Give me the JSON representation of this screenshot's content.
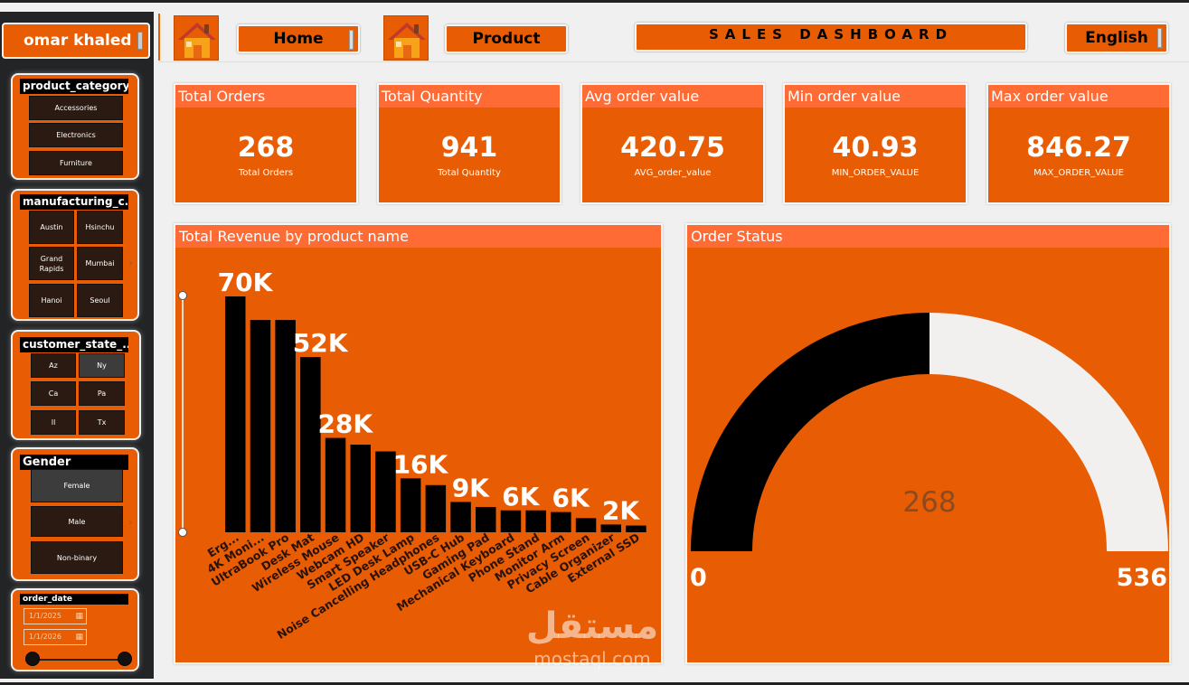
{
  "user": {
    "name": "omar khaled"
  },
  "nav": {
    "home_label": "Home",
    "product_label": "Product",
    "title": "SALES DASHBOARD",
    "language": "English"
  },
  "filters": {
    "product_category": {
      "title": "product_category",
      "options": [
        "Accessories",
        "Electronics",
        "Furniture"
      ]
    },
    "manufacturing_city": {
      "title": "manufacturing_c...",
      "options": [
        "Austin",
        "Hsinchu",
        "Grand Rapids",
        "Mumbai",
        "Hanoi",
        "Seoul"
      ]
    },
    "customer_state": {
      "title": "customer_state_...",
      "options": [
        "Az",
        "Ny",
        "Ca",
        "Pa",
        "Il",
        "Tx"
      ]
    },
    "gender": {
      "title": "Gender",
      "options": [
        "Female",
        "Male",
        "Non-binary"
      ]
    },
    "order_date": {
      "title": "order_date",
      "start": "1/1/2025",
      "end": "1/1/2026"
    }
  },
  "kpis": [
    {
      "title": "Total Orders",
      "value": "268",
      "label": "Total Orders"
    },
    {
      "title": "Total Quantity",
      "value": "941",
      "label": "Total Quantity"
    },
    {
      "title": "Avg order value",
      "value": "420.75",
      "label": "AVG_order_value"
    },
    {
      "title": "Min order value",
      "value": "40.93",
      "label": "MIN_ORDER_VALUE"
    },
    {
      "title": "Max order value",
      "value": "846.27",
      "label": "MAX_ORDER_VALUE"
    }
  ],
  "colors": {
    "accent": "#e85d04",
    "header": "#ff6b35",
    "bar": "#000000",
    "gauge_rest": "#f2f0ee"
  },
  "chart_data": [
    {
      "type": "bar",
      "title": "Total Revenue by product name",
      "categories": [
        "Erg...",
        "4K Moni...",
        "UltraBook Pro",
        "Desk Mat",
        "Wireless Mouse",
        "Webcam HD",
        "Smart Speaker",
        "LED Desk Lamp",
        "Noise Cancelling Headphones",
        "USB-C Hub",
        "Gaming Pad",
        "Mechanical Keyboard",
        "Phone Stand",
        "Monitor Arm",
        "Privacy Screen",
        "Cable Organizer",
        "External SSD"
      ],
      "values": [
        70000,
        63000,
        63000,
        52000,
        28000,
        26000,
        24000,
        16000,
        14000,
        9000,
        7500,
        6500,
        6500,
        6000,
        4200,
        2300,
        2000
      ],
      "data_labels": [
        {
          "index": 0,
          "text": "70K"
        },
        {
          "index": 3,
          "text": "52K"
        },
        {
          "index": 4,
          "text": "28K"
        },
        {
          "index": 7,
          "text": "16K"
        },
        {
          "index": 9,
          "text": "9K"
        },
        {
          "index": 11,
          "text": "6K"
        },
        {
          "index": 13,
          "text": "6K"
        },
        {
          "index": 15,
          "text": "2K"
        }
      ],
      "ylim": [
        0,
        70000
      ],
      "xlabel": "",
      "ylabel": ""
    },
    {
      "type": "gauge",
      "title": "Order Status",
      "value": 268,
      "value_label": "268",
      "min": 0,
      "max": 536,
      "min_label": "0",
      "max_label": "536"
    }
  ],
  "watermark": {
    "arabic": "مستقل",
    "latin": "mostaql.com"
  }
}
